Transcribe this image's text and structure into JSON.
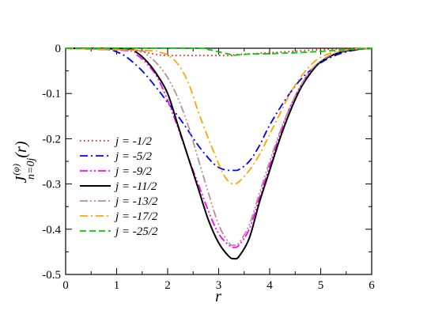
{
  "chart_data": {
    "type": "line",
    "xlabel": "r",
    "ylabel": {
      "base": "J",
      "superscript": "(φ)",
      "subscript": "n=0j",
      "argument": "(r)"
    },
    "xlim": [
      0,
      6
    ],
    "ylim": [
      -0.5,
      0
    ],
    "x_ticks": [
      "0",
      "1",
      "2",
      "3",
      "4",
      "5",
      "6"
    ],
    "y_ticks": [
      "0",
      "-0.1",
      "-0.2",
      "-0.3",
      "-0.4",
      "-0.5"
    ],
    "grid": false,
    "legend_position": "left",
    "series": [
      {
        "name": "j = -1/2",
        "color": "#ff0000",
        "dash": "dotted",
        "x": [
          0,
          1.0,
          1.3,
          1.5,
          1.8,
          2.0,
          2.5,
          3.0,
          3.3,
          3.35,
          4.0,
          5.0,
          5.5,
          6.0
        ],
        "y": [
          0,
          0,
          -0.002,
          -0.008,
          -0.014,
          -0.016,
          -0.016,
          -0.016,
          -0.016,
          -0.014,
          -0.01,
          -0.003,
          -0.001,
          0
        ]
      },
      {
        "name": "j = -5/2",
        "color": "#0000ff",
        "dash": "dash-dot",
        "x": [
          0,
          0.8,
          1.0,
          1.2,
          1.5,
          1.8,
          2.0,
          2.3,
          2.6,
          2.9,
          3.1,
          3.3,
          3.4,
          3.6,
          3.8,
          4.0,
          4.3,
          4.6,
          4.9,
          5.2,
          5.5,
          5.8,
          6.0
        ],
        "y": [
          0,
          -0.003,
          -0.008,
          -0.02,
          -0.05,
          -0.09,
          -0.12,
          -0.165,
          -0.215,
          -0.255,
          -0.268,
          -0.27,
          -0.268,
          -0.25,
          -0.215,
          -0.17,
          -0.115,
          -0.07,
          -0.04,
          -0.02,
          -0.008,
          -0.002,
          0
        ]
      },
      {
        "name": "j = -9/2",
        "color": "#ff00ff",
        "dash": "dash-dot-dot",
        "x": [
          0,
          1.2,
          1.4,
          1.6,
          1.8,
          2.0,
          2.2,
          2.4,
          2.6,
          2.8,
          3.0,
          3.2,
          3.3,
          3.4,
          3.6,
          3.8,
          4.0,
          4.2,
          4.4,
          4.6,
          4.8,
          5.0,
          5.3,
          5.6,
          6.0
        ],
        "y": [
          0,
          -0.005,
          -0.015,
          -0.035,
          -0.065,
          -0.115,
          -0.175,
          -0.24,
          -0.3,
          -0.36,
          -0.41,
          -0.435,
          -0.44,
          -0.435,
          -0.4,
          -0.33,
          -0.26,
          -0.19,
          -0.13,
          -0.085,
          -0.05,
          -0.03,
          -0.012,
          -0.004,
          0
        ]
      },
      {
        "name": "j = -11/2",
        "color": "#000000",
        "dash": "solid",
        "x": [
          0,
          1.2,
          1.4,
          1.6,
          1.8,
          2.0,
          2.2,
          2.4,
          2.6,
          2.8,
          3.0,
          3.2,
          3.3,
          3.4,
          3.6,
          3.8,
          4.0,
          4.2,
          4.4,
          4.6,
          4.8,
          5.0,
          5.3,
          5.6,
          6.0
        ],
        "y": [
          0,
          -0.002,
          -0.01,
          -0.03,
          -0.06,
          -0.1,
          -0.17,
          -0.24,
          -0.31,
          -0.38,
          -0.43,
          -0.46,
          -0.465,
          -0.46,
          -0.42,
          -0.34,
          -0.27,
          -0.2,
          -0.14,
          -0.09,
          -0.055,
          -0.03,
          -0.012,
          -0.004,
          0
        ]
      },
      {
        "name": "j = -13/2",
        "color": "#bc8f8f",
        "dash": "dash-dot-dot",
        "x": [
          0,
          1.4,
          1.6,
          1.8,
          2.0,
          2.2,
          2.4,
          2.6,
          2.8,
          3.0,
          3.2,
          3.3,
          3.4,
          3.6,
          3.8,
          4.0,
          4.2,
          4.4,
          4.6,
          4.8,
          5.0,
          5.3,
          5.6,
          6.0
        ],
        "y": [
          0,
          -0.005,
          -0.015,
          -0.035,
          -0.065,
          -0.11,
          -0.17,
          -0.245,
          -0.32,
          -0.39,
          -0.43,
          -0.435,
          -0.43,
          -0.39,
          -0.32,
          -0.25,
          -0.185,
          -0.13,
          -0.085,
          -0.05,
          -0.028,
          -0.01,
          -0.003,
          0
        ]
      },
      {
        "name": "j = -17/2",
        "color": "#ffa500",
        "dash": "dash-dot",
        "x": [
          0,
          1.6,
          1.8,
          2.0,
          2.2,
          2.4,
          2.6,
          2.8,
          3.0,
          3.1,
          3.2,
          3.3,
          3.4,
          3.6,
          3.8,
          4.0,
          4.2,
          4.4,
          4.6,
          4.8,
          5.0,
          5.3,
          5.6,
          6.0
        ],
        "y": [
          0,
          -0.005,
          -0.008,
          -0.015,
          -0.035,
          -0.075,
          -0.14,
          -0.2,
          -0.255,
          -0.28,
          -0.295,
          -0.3,
          -0.295,
          -0.27,
          -0.235,
          -0.19,
          -0.145,
          -0.1,
          -0.065,
          -0.038,
          -0.02,
          -0.007,
          -0.002,
          0
        ]
      },
      {
        "name": "j = -25/2",
        "color": "#00cc00",
        "dash": "dashed",
        "x": [
          0,
          2.5,
          2.8,
          3.0,
          3.2,
          3.3,
          3.35,
          3.6,
          4.0,
          4.5,
          5.0,
          5.5,
          6.0
        ],
        "y": [
          0,
          0,
          -0.003,
          -0.008,
          -0.013,
          -0.015,
          -0.015,
          -0.013,
          -0.012,
          -0.01,
          -0.007,
          -0.003,
          0
        ]
      }
    ]
  }
}
